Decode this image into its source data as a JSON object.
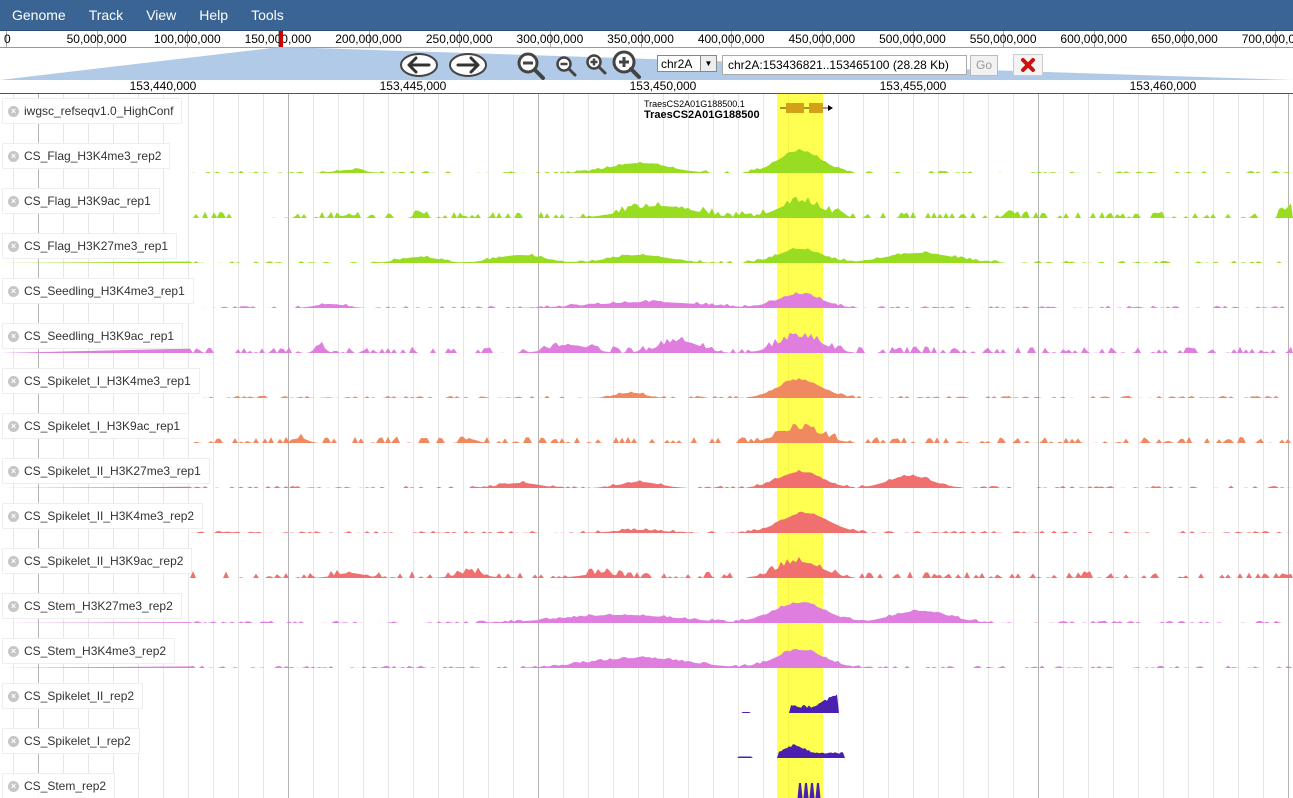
{
  "menu": [
    "Genome",
    "Track",
    "View",
    "Help",
    "Tools"
  ],
  "overview": {
    "labels": [
      "0",
      "50,000,000",
      "100,000,000",
      "150,000,000",
      "200,000,000",
      "250,000,000",
      "300,000,000",
      "350,000,000",
      "400,000,000",
      "450,000,000",
      "500,000,000",
      "550,000,000",
      "600,000,000",
      "650,000,000",
      "700,000,000"
    ]
  },
  "navigation": {
    "chromosome": "chr2A",
    "location": "chr2A:153436821..153465100 (28.28 Kb)",
    "go_label": "Go",
    "icons": [
      "pan-left-icon",
      "pan-right-icon",
      "zoom-out-big-icon",
      "zoom-out-small-icon",
      "zoom-in-small-icon",
      "zoom-in-big-icon"
    ]
  },
  "ruler": {
    "labels": [
      "153,440,000",
      "153,445,000",
      "153,450,000",
      "153,455,000",
      "153,460,000"
    ]
  },
  "gene": {
    "transcript": "TraesCS2A01G188500.1",
    "name": "TraesCS2A01G188500"
  },
  "highlight_color": "#ffff33",
  "tracks": [
    {
      "label": "iwgsc_refseqv1.0_HighConf",
      "color": "#d4a017",
      "kind": "gene"
    },
    {
      "label": "CS_Flag_H3K4me3_rep2",
      "color": "#99dd22",
      "kind": "signal"
    },
    {
      "label": "CS_Flag_H3K9ac_rep1",
      "color": "#99dd22",
      "kind": "signal"
    },
    {
      "label": "CS_Flag_H3K27me3_rep1",
      "color": "#99dd22",
      "kind": "signal"
    },
    {
      "label": "CS_Seedling_H3K4me3_rep1",
      "color": "#e07ee0",
      "kind": "signal"
    },
    {
      "label": "CS_Seedling_H3K9ac_rep1",
      "color": "#e07ee0",
      "kind": "signal"
    },
    {
      "label": "CS_Spikelet_I_H3K4me3_rep1",
      "color": "#f08860",
      "kind": "signal"
    },
    {
      "label": "CS_Spikelet_I_H3K9ac_rep1",
      "color": "#f08860",
      "kind": "signal"
    },
    {
      "label": "CS_Spikelet_II_H3K27me3_rep1",
      "color": "#f07070",
      "kind": "signal"
    },
    {
      "label": "CS_Spikelet_II_H3K4me3_rep2",
      "color": "#f07070",
      "kind": "signal"
    },
    {
      "label": "CS_Spikelet_II_H3K9ac_rep2",
      "color": "#f07070",
      "kind": "signal"
    },
    {
      "label": "CS_Stem_H3K27me3_rep2",
      "color": "#e07ee0",
      "kind": "signal"
    },
    {
      "label": "CS_Stem_H3K4me3_rep2",
      "color": "#e07ee0",
      "kind": "signal"
    },
    {
      "label": "CS_Spikelet_II_rep2",
      "color": "#4b20b0",
      "kind": "rna"
    },
    {
      "label": "CS_Spikelet_I_rep2",
      "color": "#4b20b0",
      "kind": "rna"
    },
    {
      "label": "CS_Stem_rep2",
      "color": "#4b20b0",
      "kind": "rna"
    }
  ]
}
